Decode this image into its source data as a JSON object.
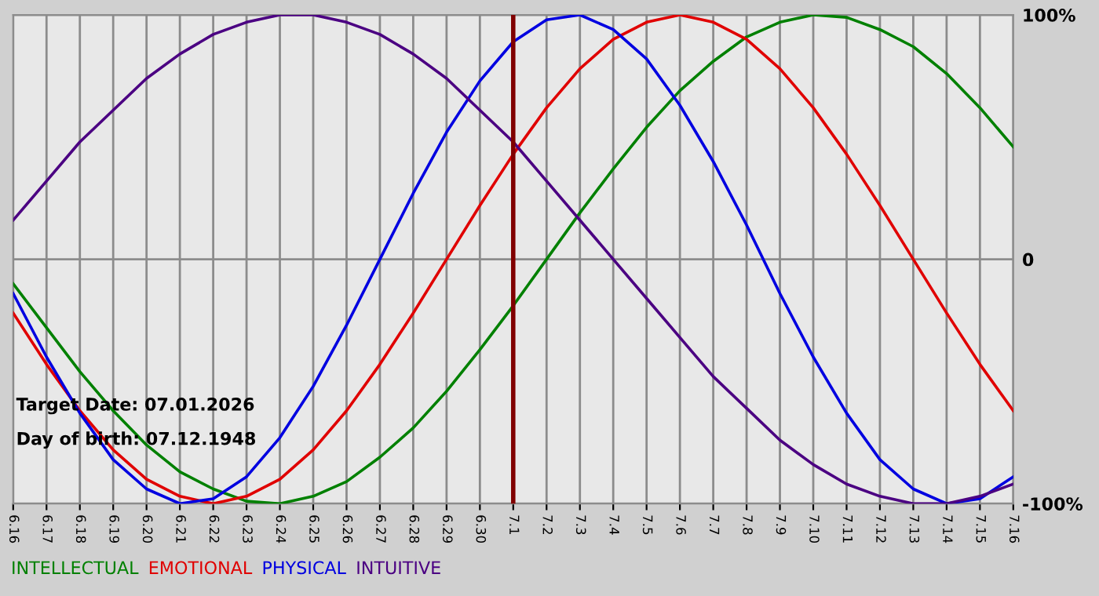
{
  "chart_data": {
    "type": "line",
    "categories": [
      "6.16",
      "6.17",
      "6.18",
      "6.19",
      "6.20",
      "6.21",
      "6.22",
      "6.23",
      "6.24",
      "6.25",
      "6.26",
      "6.27",
      "6.28",
      "6.29",
      "6.30",
      "7.1",
      "7.2",
      "7.3",
      "7.4",
      "7.5",
      "7.6",
      "7.7",
      "7.8",
      "7.9",
      "7.10",
      "7.11",
      "7.12",
      "7.13",
      "7.14",
      "7.15",
      "7.16"
    ],
    "ylim": [
      -100,
      100
    ],
    "yticks": [
      {
        "value": 100,
        "label": "100%"
      },
      0,
      {
        "value": -100,
        "label": "-100%"
      }
    ],
    "grid": true,
    "legend": "bottom",
    "marker": "none",
    "series": [
      {
        "name": "INTELLECTUAL",
        "color": "#008000",
        "values": [
          -10,
          -28,
          -46,
          -62,
          -76,
          -87,
          -94,
          -99,
          -100,
          -97,
          -91,
          -81,
          -69,
          -54,
          -37,
          -19,
          0,
          19,
          37,
          54,
          69,
          81,
          91,
          97,
          100,
          99,
          94,
          87,
          76,
          62,
          46
        ]
      },
      {
        "name": "EMOTIONAL",
        "color": "#e00000",
        "values": [
          -22,
          -43,
          -62,
          -78,
          -90,
          -97,
          -100,
          -97,
          -90,
          -78,
          -62,
          -43,
          -22,
          0,
          22,
          43,
          62,
          78,
          90,
          97,
          100,
          97,
          90,
          78,
          62,
          43,
          22,
          0,
          -22,
          -43,
          -62
        ]
      },
      {
        "name": "PHYSICAL",
        "color": "#0000e0",
        "values": [
          -14,
          -40,
          -63,
          -82,
          -94,
          -100,
          -98,
          -89,
          -73,
          -52,
          -27,
          0,
          27,
          52,
          73,
          89,
          98,
          100,
          94,
          82,
          63,
          40,
          14,
          -14,
          -40,
          -63,
          -82,
          -94,
          -100,
          -98,
          -89
        ]
      },
      {
        "name": "INTUITIVE",
        "color": "#4b0082",
        "values": [
          16,
          32,
          48,
          61,
          74,
          84,
          92,
          97,
          100,
          100,
          97,
          92,
          84,
          74,
          61,
          48,
          32,
          16,
          0,
          -16,
          -32,
          -48,
          -61,
          -74,
          -84,
          -92,
          -97,
          -100,
          -100,
          -97,
          -92
        ]
      }
    ],
    "ref_lines": [
      {
        "axis": "x",
        "value": "7.1",
        "color": "#800000"
      }
    ],
    "annotations": [
      "Target Date: 07.01.2026",
      "Day of birth: 07.12.1948"
    ]
  }
}
